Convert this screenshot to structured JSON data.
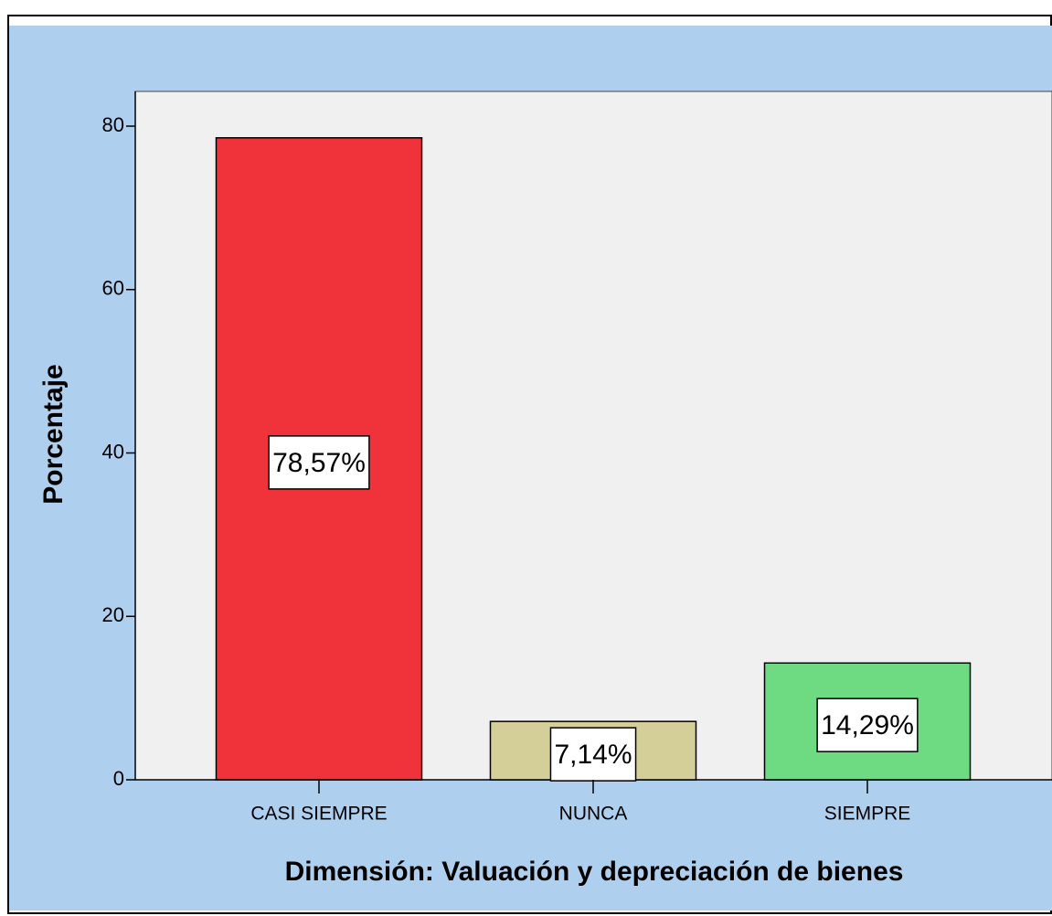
{
  "chart_data": {
    "type": "bar",
    "x_label": "Dimensión: Valuación y depreciación de bienes",
    "y_label": "Porcentaje",
    "categories": [
      "CASI SIEMPRE",
      "NUNCA",
      "SIEMPRE"
    ],
    "values": [
      78.57,
      7.14,
      14.29
    ],
    "value_labels": [
      "78,57%",
      "7,14%",
      "14,29%"
    ],
    "colors": [
      "#f0333a",
      "#d4cf99",
      "#6edb82"
    ],
    "ylim": [
      0,
      84.25
    ],
    "yticks": [
      0,
      20,
      40,
      60,
      80
    ],
    "grid": false
  }
}
